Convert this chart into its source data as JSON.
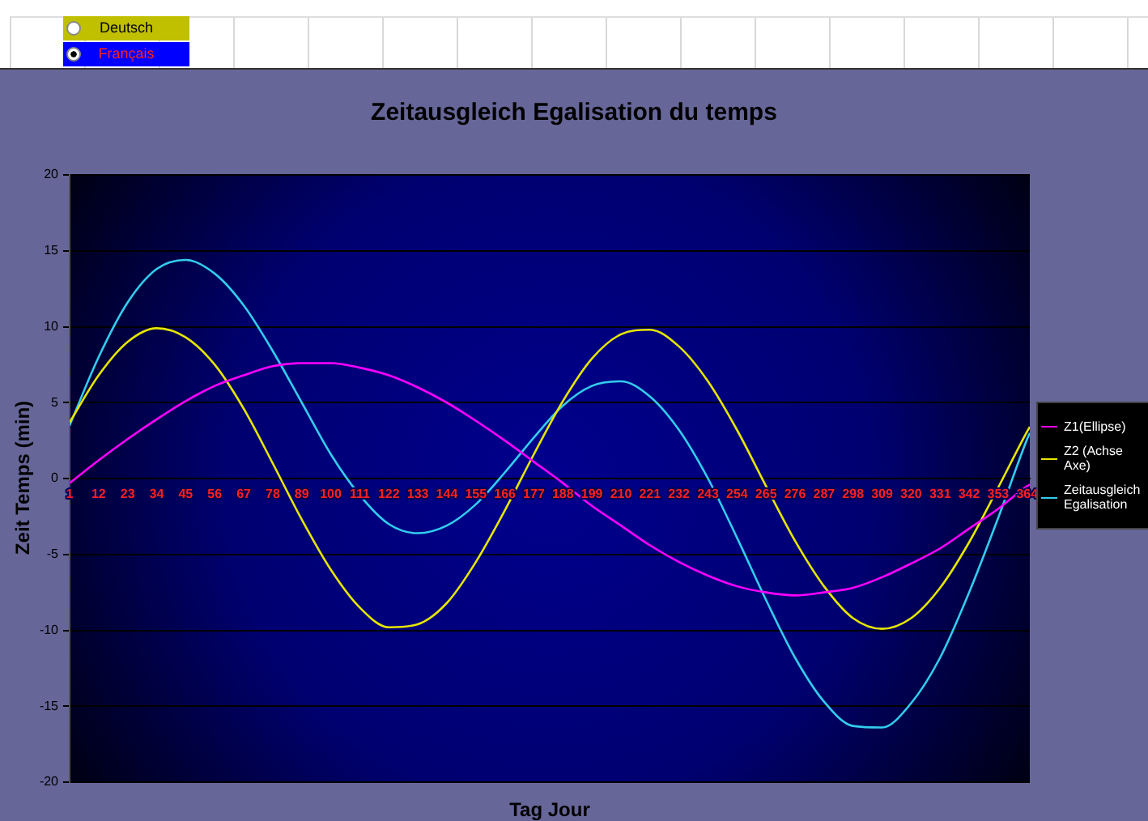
{
  "chart_data": {
    "type": "line",
    "title": "Zeitausgleich Egalisation du temps",
    "xlabel": "Tag Jour",
    "ylabel": "Zeit Temps (min)",
    "annotations": [
      "Deutsch",
      "Français"
    ],
    "x": [
      1,
      12,
      23,
      34,
      45,
      56,
      67,
      78,
      89,
      100,
      111,
      122,
      133,
      144,
      155,
      166,
      177,
      188,
      199,
      210,
      221,
      232,
      243,
      254,
      265,
      276,
      287,
      298,
      309,
      320,
      331,
      342,
      353,
      364,
      365
    ],
    "series": [
      {
        "name": "Z1(Ellipse)",
        "color": "#ff00ff",
        "values": [
          -0.3,
          1.2,
          2.6,
          3.9,
          5.1,
          6.1,
          6.8,
          7.4,
          7.6,
          7.6,
          7.3,
          6.8,
          6.0,
          5.0,
          3.8,
          2.5,
          1.1,
          -0.3,
          -1.8,
          -3.1,
          -4.4,
          -5.5,
          -6.4,
          -7.1,
          -7.5,
          -7.7,
          -7.5,
          -7.2,
          -6.5,
          -5.6,
          -4.6,
          -3.3,
          -2.0,
          -0.5,
          -0.4
        ]
      },
      {
        "name": "Z2 (Achse Axe)",
        "color": "#e6e600",
        "values": [
          3.7,
          6.8,
          9.0,
          9.9,
          9.3,
          7.5,
          4.6,
          1.0,
          -2.7,
          -6.0,
          -8.5,
          -9.8,
          -9.6,
          -8.2,
          -5.5,
          -2.1,
          1.6,
          5.1,
          7.9,
          9.5,
          9.8,
          8.7,
          6.4,
          3.2,
          -0.5,
          -4.1,
          -7.1,
          -9.2,
          -9.9,
          -9.2,
          -7.2,
          -4.2,
          -0.6,
          3.1,
          3.4
        ]
      },
      {
        "name": "Zeitausgleich Egalisation",
        "color": "#33ccee",
        "values": [
          3.5,
          8.0,
          11.6,
          13.8,
          14.4,
          13.5,
          11.4,
          8.4,
          5.0,
          1.6,
          -1.1,
          -3.0,
          -3.6,
          -3.1,
          -1.7,
          0.4,
          2.7,
          4.8,
          6.1,
          6.4,
          5.4,
          3.2,
          0.0,
          -3.9,
          -8.0,
          -11.8,
          -14.7,
          -16.3,
          -16.4,
          -14.8,
          -11.8,
          -7.5,
          -2.6,
          2.6,
          3.0
        ]
      }
    ],
    "xlim": [
      1,
      365
    ],
    "xticks": [
      1,
      12,
      23,
      34,
      45,
      56,
      67,
      78,
      89,
      100,
      111,
      122,
      133,
      144,
      155,
      166,
      177,
      188,
      199,
      210,
      221,
      232,
      243,
      254,
      265,
      276,
      287,
      298,
      309,
      320,
      331,
      342,
      353,
      364
    ],
    "ylim": [
      -20,
      20
    ],
    "yticks": [
      -20,
      -15,
      -10,
      -5,
      0,
      5,
      10,
      15,
      20
    ],
    "grid": "y",
    "legend": "right",
    "marker": "none",
    "line_style": "solid"
  }
}
